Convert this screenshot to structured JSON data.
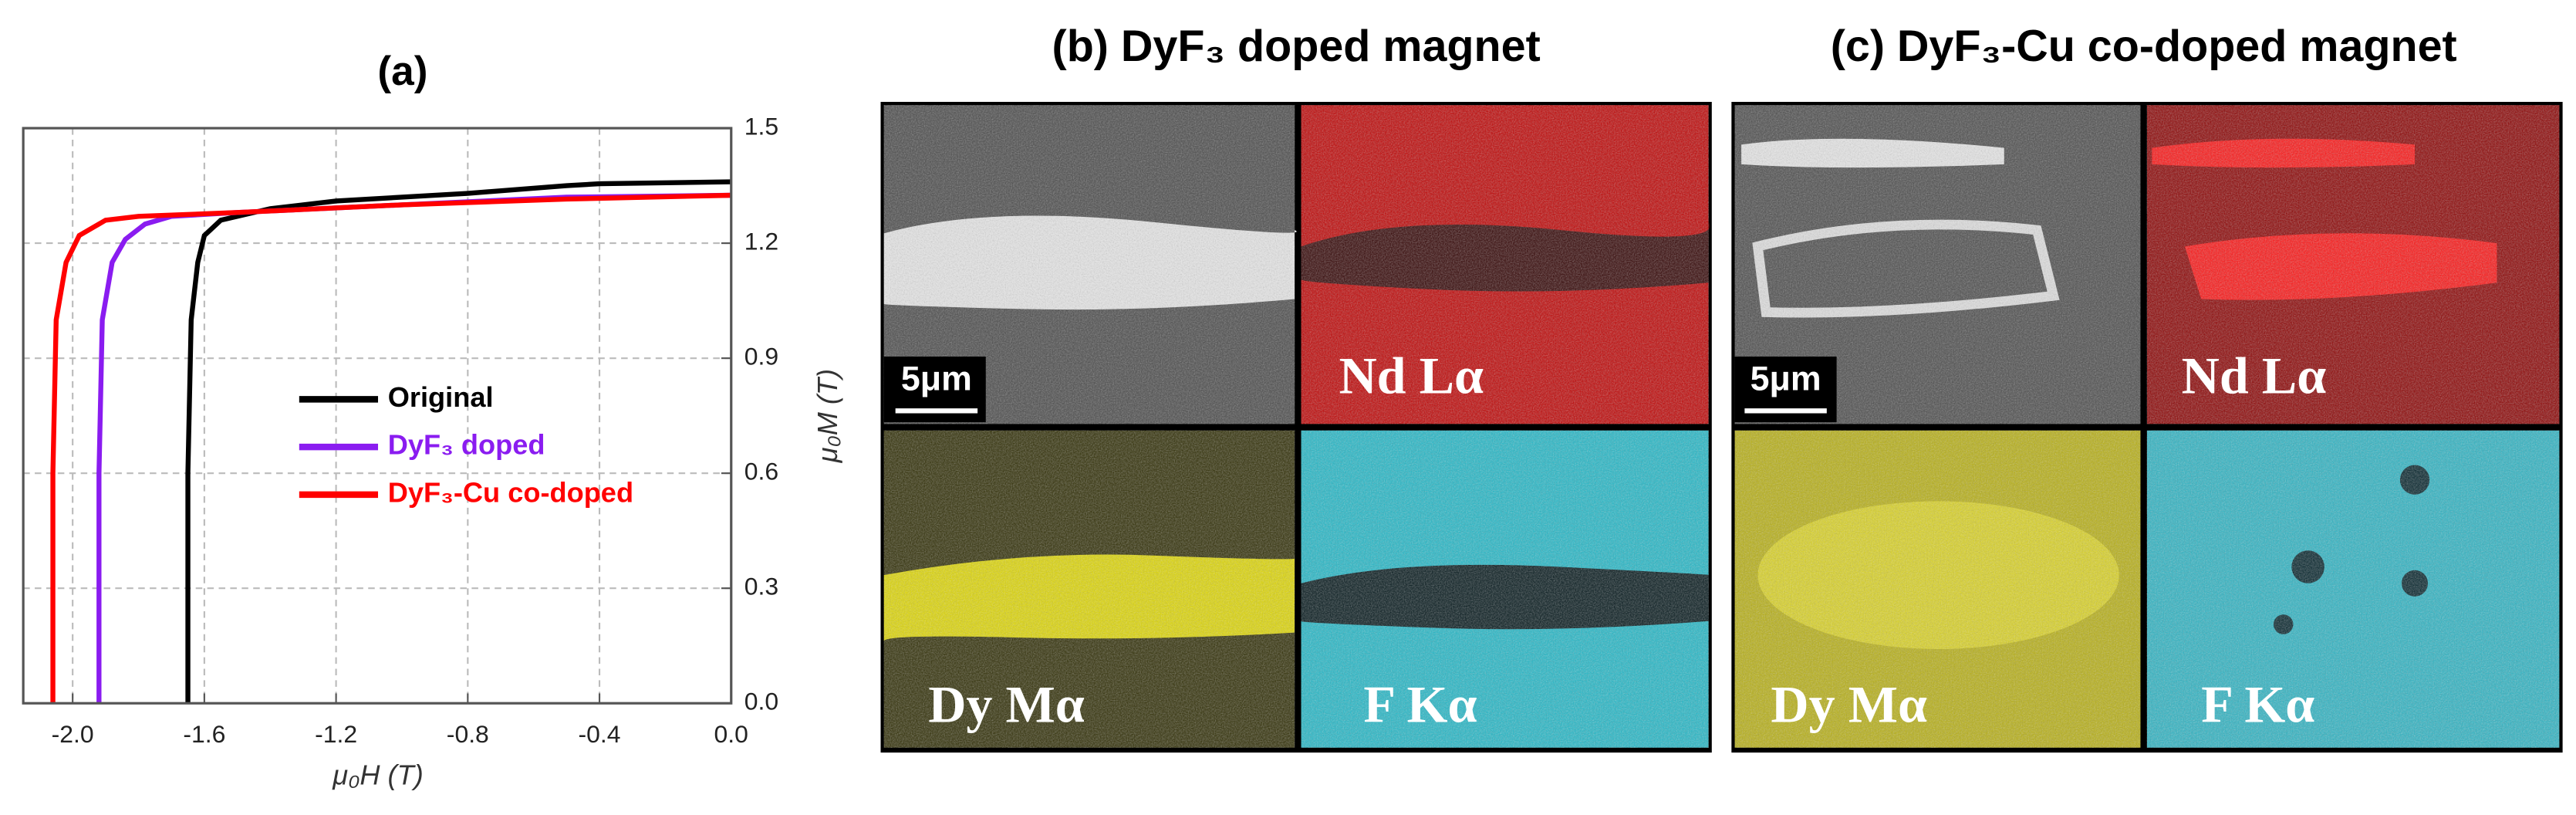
{
  "chart_data": {
    "type": "line",
    "title": "(a)",
    "xlabel": "μ₀H (T)",
    "ylabel": "μ₀M (T)",
    "xlim": [
      -2.15,
      0
    ],
    "ylim": [
      0,
      1.5
    ],
    "xticks": [
      {
        "value": -2.0,
        "label": "-2.0"
      },
      -1.6,
      -1.2,
      -0.8,
      -0.4,
      {
        "value": 0,
        "label": "0.0"
      }
    ],
    "yticks": [
      {
        "value": 0,
        "label": "0.0"
      },
      0.3,
      0.6,
      0.9,
      1.2,
      1.5
    ],
    "grid": true,
    "legend": "center",
    "series": [
      {
        "name": "Original",
        "color": "#000000",
        "x": [
          -1.65,
          -1.65,
          -1.64,
          -1.62,
          -1.6,
          -1.55,
          -1.4,
          -1.2,
          -0.8,
          -0.5,
          -0.4,
          0
        ],
        "values": [
          0,
          0.6,
          1.0,
          1.15,
          1.22,
          1.26,
          1.29,
          1.31,
          1.33,
          1.35,
          1.355,
          1.36
        ]
      },
      {
        "name": "DyF₃ doped",
        "color": "#8a1cf0",
        "x": [
          -1.92,
          -1.92,
          -1.91,
          -1.88,
          -1.84,
          -1.78,
          -1.7,
          -1.5,
          -1.0,
          -0.5,
          0
        ],
        "values": [
          0,
          0.6,
          1.0,
          1.15,
          1.21,
          1.25,
          1.27,
          1.28,
          1.3,
          1.32,
          1.325
        ]
      },
      {
        "name": "DyF₃-Cu co-doped",
        "color": "#ff0000",
        "x": [
          -2.06,
          -2.06,
          -2.05,
          -2.02,
          -1.98,
          -1.9,
          -1.8,
          -1.5,
          -1.0,
          -0.5,
          0
        ],
        "values": [
          0,
          0.6,
          1.0,
          1.15,
          1.22,
          1.26,
          1.27,
          1.28,
          1.3,
          1.315,
          1.325
        ]
      }
    ]
  },
  "panels": [
    {
      "title": "(b) DyF₃ doped magnet",
      "scale_bar": "5μm",
      "maps": [
        "Nd Lα",
        "Dy Mα",
        "F Kα"
      ]
    },
    {
      "title": "(c) DyF₃-Cu co-doped magnet",
      "scale_bar": "5μm",
      "maps": [
        "Nd Lα",
        "Dy Mα",
        "F Kα"
      ]
    }
  ]
}
